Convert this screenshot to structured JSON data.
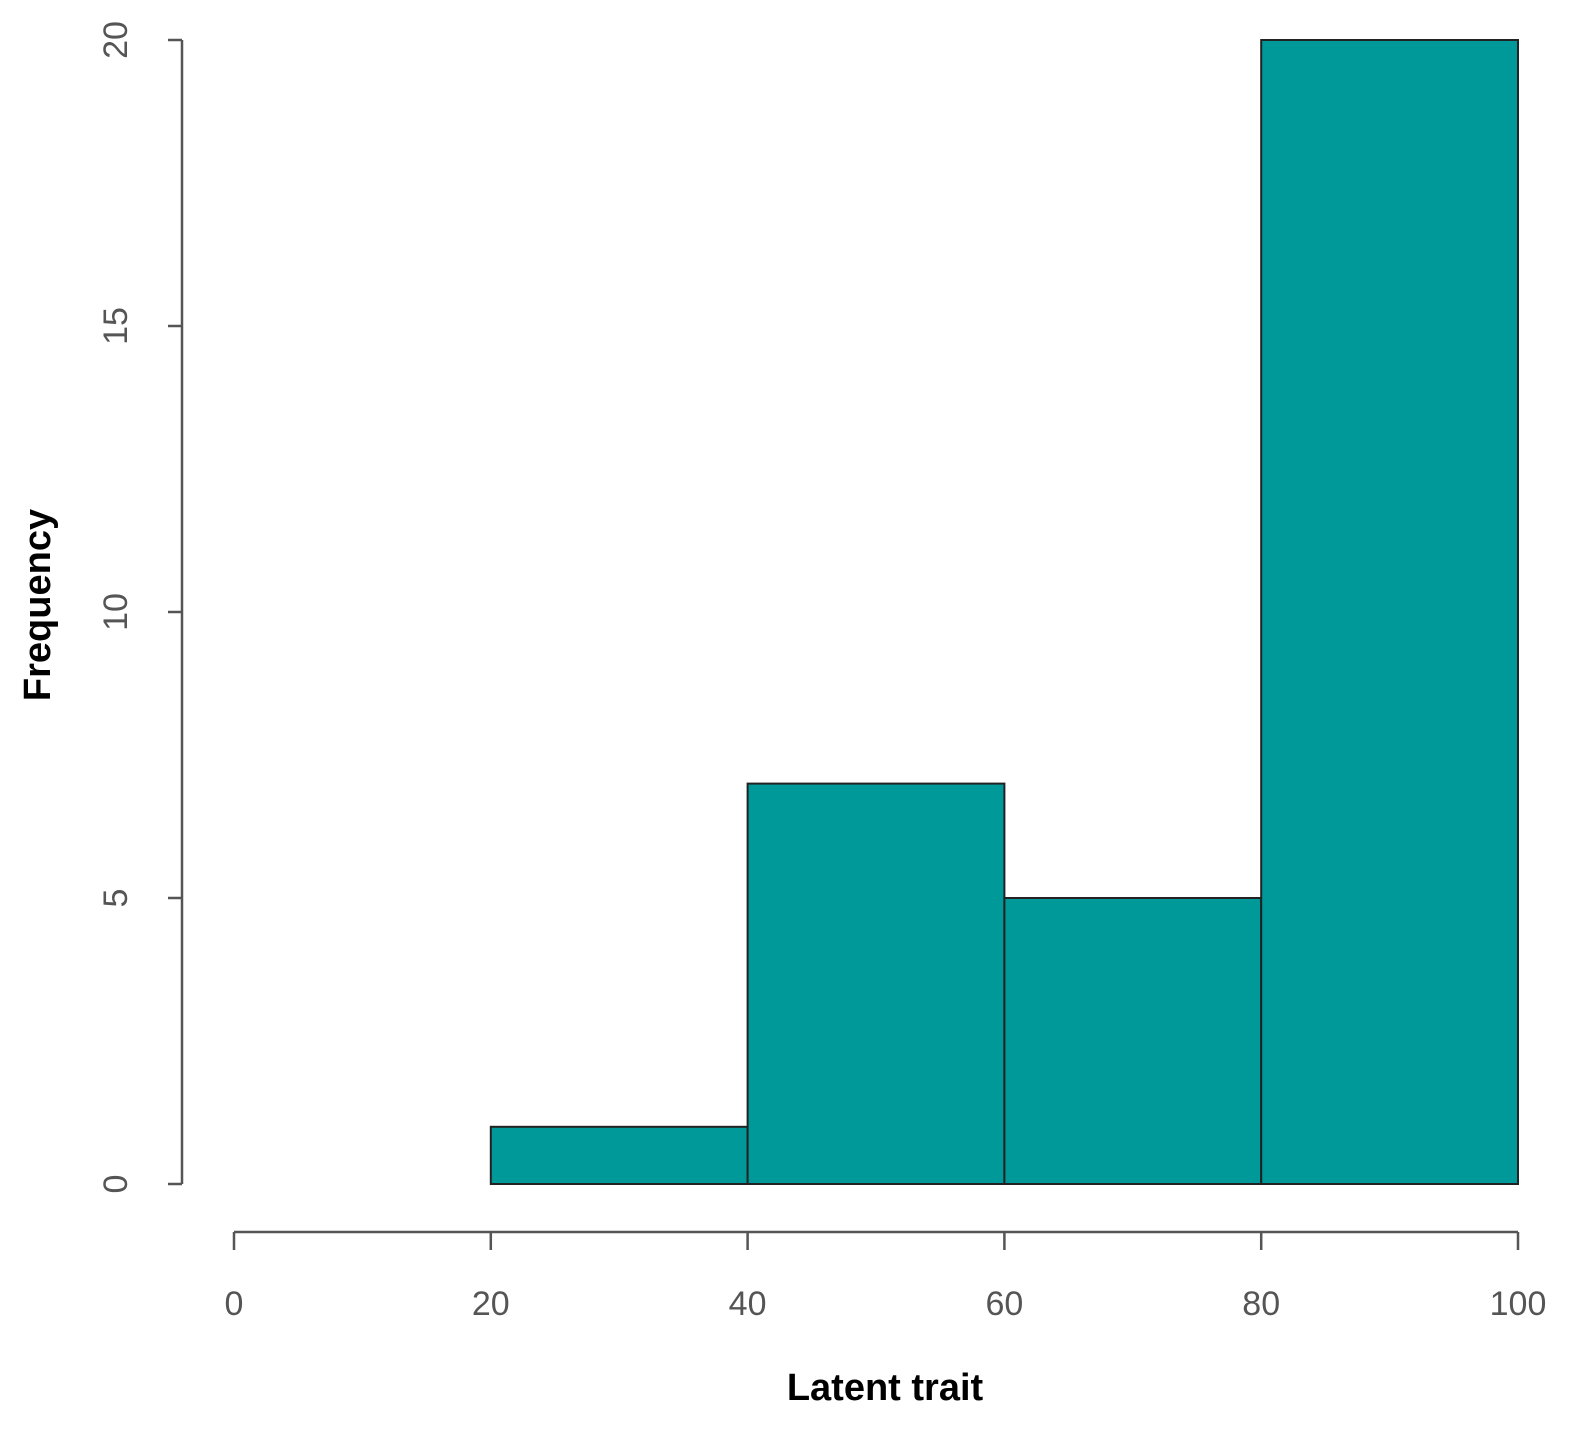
{
  "chart_data": {
    "type": "histogram",
    "x_label": "Latent trait",
    "y_label": "Frequency",
    "bins": [
      20,
      40,
      60,
      80,
      100
    ],
    "counts": [
      1,
      7,
      5,
      20
    ],
    "color": "#00999a",
    "xlim": [
      0,
      100
    ],
    "xticks": [
      0,
      20,
      40,
      60,
      80,
      100
    ],
    "ylim": [
      0,
      20
    ],
    "yticks": [
      0,
      5,
      10,
      15,
      20
    ]
  }
}
